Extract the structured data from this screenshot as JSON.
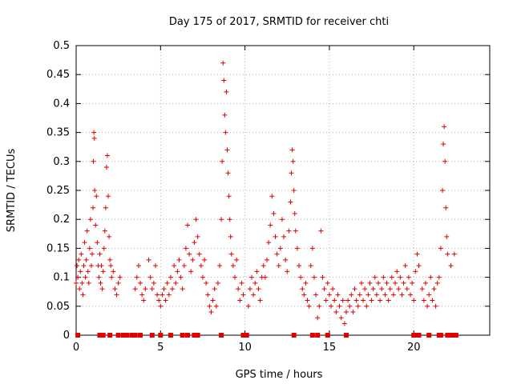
{
  "chart_data": {
    "type": "scatter",
    "title": "Day 175 of 2017, SRMTID for receiver chti",
    "xlabel": "GPS time / hours",
    "ylabel": "SRMTID / TECUs",
    "xlim": [
      0,
      24.5
    ],
    "ylim": [
      0,
      0.5
    ],
    "xticks": [
      0,
      5,
      10,
      15,
      20
    ],
    "xtick_labels": [
      "0",
      "5",
      "10",
      "15",
      "20"
    ],
    "yticks": [
      0,
      0.05,
      0.1,
      0.15,
      0.2,
      0.25,
      0.3,
      0.35,
      0.4,
      0.45,
      0.5
    ],
    "ytick_labels": [
      "0",
      "0.05",
      "0.1",
      "0.15",
      "0.2",
      "0.25",
      "0.3",
      "0.35",
      "0.4",
      "0.45",
      "0.5"
    ],
    "grid": true,
    "marker": "+",
    "color": "#e00000",
    "series": [
      {
        "name": "SRMTID",
        "points": [
          [
            0.0,
            0.09
          ],
          [
            0.05,
            0.12
          ],
          [
            0.1,
            0.1
          ],
          [
            0.15,
            0.13
          ],
          [
            0.2,
            0.08
          ],
          [
            0.25,
            0.11
          ],
          [
            0.3,
            0.14
          ],
          [
            0.35,
            0.09
          ],
          [
            0.4,
            0.07
          ],
          [
            0.45,
            0.12
          ],
          [
            0.5,
            0.16
          ],
          [
            0.55,
            0.1
          ],
          [
            0.6,
            0.13
          ],
          [
            0.65,
            0.18
          ],
          [
            0.7,
            0.11
          ],
          [
            0.75,
            0.09
          ],
          [
            0.8,
            0.15
          ],
          [
            0.85,
            0.2
          ],
          [
            0.9,
            0.12
          ],
          [
            0.95,
            0.14
          ],
          [
            1.0,
            0.22
          ],
          [
            1.02,
            0.3
          ],
          [
            1.05,
            0.35
          ],
          [
            1.08,
            0.34
          ],
          [
            1.1,
            0.25
          ],
          [
            1.15,
            0.19
          ],
          [
            1.2,
            0.24
          ],
          [
            1.25,
            0.16
          ],
          [
            1.3,
            0.12
          ],
          [
            1.35,
            0.1
          ],
          [
            1.4,
            0.14
          ],
          [
            1.45,
            0.09
          ],
          [
            1.5,
            0.12
          ],
          [
            1.55,
            0.08
          ],
          [
            1.6,
            0.11
          ],
          [
            1.65,
            0.15
          ],
          [
            1.7,
            0.18
          ],
          [
            1.75,
            0.22
          ],
          [
            1.8,
            0.29
          ],
          [
            1.85,
            0.31
          ],
          [
            1.9,
            0.24
          ],
          [
            1.95,
            0.17
          ],
          [
            2.0,
            0.13
          ],
          [
            2.05,
            0.12
          ],
          [
            2.1,
            0.1
          ],
          [
            2.2,
            0.11
          ],
          [
            2.3,
            0.08
          ],
          [
            2.4,
            0.07
          ],
          [
            2.5,
            0.09
          ],
          [
            2.6,
            0.1
          ],
          [
            3.5,
            0.08
          ],
          [
            3.6,
            0.1
          ],
          [
            3.7,
            0.12
          ],
          [
            3.8,
            0.09
          ],
          [
            3.9,
            0.07
          ],
          [
            4.0,
            0.06
          ],
          [
            4.1,
            0.08
          ],
          [
            4.3,
            0.13
          ],
          [
            4.4,
            0.1
          ],
          [
            4.5,
            0.08
          ],
          [
            4.6,
            0.09
          ],
          [
            4.7,
            0.12
          ],
          [
            4.8,
            0.07
          ],
          [
            4.9,
            0.06
          ],
          [
            5.0,
            0.05
          ],
          [
            5.1,
            0.07
          ],
          [
            5.2,
            0.08
          ],
          [
            5.3,
            0.06
          ],
          [
            5.4,
            0.09
          ],
          [
            5.5,
            0.07
          ],
          [
            5.6,
            0.1
          ],
          [
            5.7,
            0.08
          ],
          [
            5.8,
            0.12
          ],
          [
            5.9,
            0.09
          ],
          [
            6.0,
            0.11
          ],
          [
            6.1,
            0.13
          ],
          [
            6.2,
            0.1
          ],
          [
            6.3,
            0.08
          ],
          [
            6.4,
            0.12
          ],
          [
            6.5,
            0.15
          ],
          [
            6.6,
            0.19
          ],
          [
            6.7,
            0.14
          ],
          [
            6.8,
            0.11
          ],
          [
            6.9,
            0.13
          ],
          [
            7.0,
            0.16
          ],
          [
            7.1,
            0.2
          ],
          [
            7.2,
            0.17
          ],
          [
            7.3,
            0.14
          ],
          [
            7.4,
            0.12
          ],
          [
            7.5,
            0.1
          ],
          [
            7.6,
            0.13
          ],
          [
            7.7,
            0.09
          ],
          [
            7.8,
            0.07
          ],
          [
            7.9,
            0.05
          ],
          [
            8.0,
            0.04
          ],
          [
            8.1,
            0.06
          ],
          [
            8.2,
            0.08
          ],
          [
            8.3,
            0.05
          ],
          [
            8.4,
            0.09
          ],
          [
            8.5,
            0.12
          ],
          [
            8.6,
            0.2
          ],
          [
            8.65,
            0.3
          ],
          [
            8.7,
            0.47
          ],
          [
            8.75,
            0.44
          ],
          [
            8.8,
            0.38
          ],
          [
            8.85,
            0.35
          ],
          [
            8.9,
            0.42
          ],
          [
            8.95,
            0.32
          ],
          [
            9.0,
            0.28
          ],
          [
            9.05,
            0.24
          ],
          [
            9.1,
            0.2
          ],
          [
            9.15,
            0.17
          ],
          [
            9.2,
            0.14
          ],
          [
            9.3,
            0.12
          ],
          [
            9.4,
            0.1
          ],
          [
            9.5,
            0.13
          ],
          [
            9.6,
            0.08
          ],
          [
            9.7,
            0.06
          ],
          [
            9.8,
            0.09
          ],
          [
            9.9,
            0.07
          ],
          [
            10.2,
            0.05
          ],
          [
            10.3,
            0.08
          ],
          [
            10.4,
            0.1
          ],
          [
            10.5,
            0.07
          ],
          [
            10.6,
            0.09
          ],
          [
            10.7,
            0.11
          ],
          [
            10.8,
            0.08
          ],
          [
            10.9,
            0.06
          ],
          [
            11.0,
            0.1
          ],
          [
            11.1,
            0.12
          ],
          [
            11.2,
            0.1
          ],
          [
            11.3,
            0.13
          ],
          [
            11.4,
            0.16
          ],
          [
            11.5,
            0.19
          ],
          [
            11.6,
            0.24
          ],
          [
            11.7,
            0.21
          ],
          [
            11.8,
            0.17
          ],
          [
            11.9,
            0.14
          ],
          [
            12.0,
            0.12
          ],
          [
            12.1,
            0.15
          ],
          [
            12.2,
            0.2
          ],
          [
            12.3,
            0.17
          ],
          [
            12.4,
            0.13
          ],
          [
            12.5,
            0.11
          ],
          [
            12.6,
            0.18
          ],
          [
            12.7,
            0.23
          ],
          [
            12.75,
            0.28
          ],
          [
            12.8,
            0.32
          ],
          [
            12.85,
            0.3
          ],
          [
            12.9,
            0.25
          ],
          [
            12.95,
            0.21
          ],
          [
            13.0,
            0.18
          ],
          [
            13.1,
            0.15
          ],
          [
            13.2,
            0.12
          ],
          [
            13.3,
            0.1
          ],
          [
            13.4,
            0.08
          ],
          [
            13.5,
            0.07
          ],
          [
            13.6,
            0.09
          ],
          [
            13.7,
            0.06
          ],
          [
            13.8,
            0.05
          ],
          [
            13.9,
            0.12
          ],
          [
            14.0,
            0.15
          ],
          [
            14.1,
            0.1
          ],
          [
            14.2,
            0.07
          ],
          [
            14.3,
            0.03
          ],
          [
            14.4,
            0.05
          ],
          [
            14.5,
            0.18
          ],
          [
            14.6,
            0.1
          ],
          [
            14.7,
            0.08
          ],
          [
            14.8,
            0.06
          ],
          [
            14.9,
            0.09
          ],
          [
            15.0,
            0.07
          ],
          [
            15.1,
            0.05
          ],
          [
            15.2,
            0.08
          ],
          [
            15.3,
            0.06
          ],
          [
            15.4,
            0.04
          ],
          [
            15.5,
            0.07
          ],
          [
            15.6,
            0.05
          ],
          [
            15.7,
            0.03
          ],
          [
            15.8,
            0.06
          ],
          [
            15.9,
            0.02
          ],
          [
            16.0,
            0.04
          ],
          [
            16.1,
            0.06
          ],
          [
            16.2,
            0.05
          ],
          [
            16.3,
            0.07
          ],
          [
            16.4,
            0.04
          ],
          [
            16.5,
            0.08
          ],
          [
            16.6,
            0.06
          ],
          [
            16.7,
            0.05
          ],
          [
            16.8,
            0.07
          ],
          [
            16.9,
            0.09
          ],
          [
            17.0,
            0.06
          ],
          [
            17.1,
            0.08
          ],
          [
            17.2,
            0.05
          ],
          [
            17.3,
            0.07
          ],
          [
            17.4,
            0.09
          ],
          [
            17.5,
            0.06
          ],
          [
            17.6,
            0.08
          ],
          [
            17.7,
            0.1
          ],
          [
            17.8,
            0.07
          ],
          [
            17.9,
            0.09
          ],
          [
            18.0,
            0.06
          ],
          [
            18.1,
            0.08
          ],
          [
            18.2,
            0.1
          ],
          [
            18.3,
            0.07
          ],
          [
            18.4,
            0.09
          ],
          [
            18.5,
            0.06
          ],
          [
            18.6,
            0.08
          ],
          [
            18.7,
            0.1
          ],
          [
            18.8,
            0.07
          ],
          [
            18.9,
            0.09
          ],
          [
            19.0,
            0.11
          ],
          [
            19.1,
            0.08
          ],
          [
            19.2,
            0.1
          ],
          [
            19.3,
            0.07
          ],
          [
            19.4,
            0.09
          ],
          [
            19.5,
            0.12
          ],
          [
            19.6,
            0.08
          ],
          [
            19.7,
            0.1
          ],
          [
            19.8,
            0.07
          ],
          [
            19.9,
            0.09
          ],
          [
            20.0,
            0.06
          ],
          [
            20.1,
            0.11
          ],
          [
            20.2,
            0.14
          ],
          [
            20.3,
            0.12
          ],
          [
            20.5,
            0.08
          ],
          [
            20.6,
            0.06
          ],
          [
            20.7,
            0.09
          ],
          [
            20.8,
            0.05
          ],
          [
            20.9,
            0.07
          ],
          [
            21.0,
            0.1
          ],
          [
            21.1,
            0.06
          ],
          [
            21.2,
            0.08
          ],
          [
            21.3,
            0.05
          ],
          [
            21.4,
            0.09
          ],
          [
            21.5,
            0.1
          ],
          [
            21.6,
            0.15
          ],
          [
            21.7,
            0.25
          ],
          [
            21.75,
            0.33
          ],
          [
            21.8,
            0.36
          ],
          [
            21.85,
            0.3
          ],
          [
            21.9,
            0.22
          ],
          [
            21.95,
            0.17
          ],
          [
            22.0,
            0.14
          ],
          [
            22.2,
            0.12
          ],
          [
            22.4,
            0.14
          ]
        ]
      }
    ],
    "zero_points": [
      0.1,
      1.4,
      1.6,
      2.0,
      2.5,
      2.8,
      3.0,
      3.3,
      3.5,
      3.8,
      4.5,
      5.0,
      5.6,
      6.3,
      6.6,
      7.0,
      7.2,
      8.6,
      9.9,
      10.1,
      12.9,
      14.0,
      14.3,
      14.9,
      16.0,
      20.0,
      20.1,
      20.3,
      20.9,
      21.5,
      21.6,
      22.0,
      22.1,
      22.2,
      22.3,
      22.4,
      22.5
    ]
  }
}
